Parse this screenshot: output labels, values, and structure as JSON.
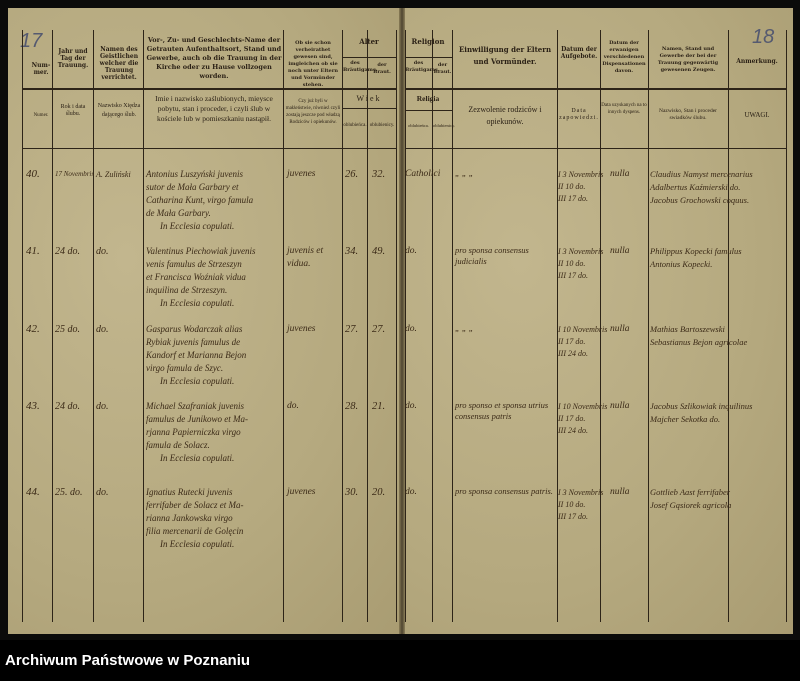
{
  "page_numbers": {
    "left": "17",
    "right": "18"
  },
  "headers_de": {
    "nr": "Num-mer.",
    "jahr": "Jahr und Tag der Trauung.",
    "priest": "Namen des Geistlichen welcher die Trauung verrichtet.",
    "names": "Vor-, Zu- und Geschlechts-Name der Getrauten Aufenthaltsort, Stand und Gewerbe, auch ob die Trauung in der Kirche oder zu Hause vollzogen worden.",
    "guardian": "Ob sie schon verheirathet gewesen sind, imgleichen ob sie noch unter Eltern und Vormünder stehen.",
    "alter": "Alter",
    "alter_groom": "des Bräutigams.",
    "alter_bride": "der Braut.",
    "religion": "Religion",
    "rel_groom": "des Bräutigams.",
    "rel_bride": "der Braut.",
    "consent": "Einwilligung der Eltern und Vormünder.",
    "banns": "Datum der Aufgebote.",
    "dispens": "Datum der erwanigen verschiedenen Dispensationen davon.",
    "witnesses": "Namen, Stand und Gewerbe der bei der Trauung gegenwärtig gewesenen Zeugen.",
    "remarks": "Anmerkung."
  },
  "headers_pl": {
    "nr": "Numer.",
    "rok": "Rok i data ślubu.",
    "priest": "Nazwisko Xiędza dającego ślub.",
    "names": "Imie i nazwisko zaślubionych, mieysce pobytu, stan i proceder, i czyli ślub w kościele lub w pomieszkaniu nastąpił.",
    "guardian": "Czy już byli w małżeństwie, równieź czyli zostają jeszcze pod władzą Rodziców i opiekunów.",
    "wiek": "Wiek",
    "wiek_groom": "oblubieńca.",
    "wiek_bride": "oblubienicy.",
    "religia": "Religia",
    "rel_groom": "oblubieńca.",
    "rel_bride": "oblubienicy.",
    "consent": "Zezwolenie rodziców i opiekunów.",
    "banns": "Data zapowiedzi.",
    "dispens": "Data uzyskanych na to innych dyspens.",
    "witnesses": "Nazwisko, Stan i proceder swiadków ślubu.",
    "remarks": "UWAGI."
  },
  "entries": [
    {
      "nr": "40.",
      "date": "17 Novembris",
      "priest": "A. Zuliński",
      "names": [
        "Antonius Luszyński juvenis",
        "sutor de Mała Garbary et",
        "Catharina Kunt, virgo famula",
        "de Mała Garbary.",
        "In Ecclesia copulati."
      ],
      "status": [
        "juvenes"
      ],
      "age_groom": "26.",
      "age_bride": "32.",
      "religion": "Catholici",
      "consent": "„ „ „",
      "banns": [
        "I 3 Novembris",
        "II 10 do.",
        "III 17 do."
      ],
      "dispens": "nulla",
      "witnesses": [
        "Claudius Namyst mercenarius",
        "Adalbertus Kaźmierski do.",
        "Jacobus Grochowski coquus."
      ]
    },
    {
      "nr": "41.",
      "date": "24 do.",
      "priest": "do.",
      "names": [
        "Valentinus Piechowiak juvenis",
        "venis famulus de Strzeszyn",
        "et Francisca Woźniak vidua",
        "inquilina de Strzeszyn.",
        "In Ecclesia copulati."
      ],
      "status": [
        "juvenis et",
        "vidua."
      ],
      "age_groom": "34.",
      "age_bride": "49.",
      "religion": "do.",
      "consent": "pro sponsa consensus judicialis",
      "banns": [
        "I 3 Novembris",
        "II 10 do.",
        "III 17 do."
      ],
      "dispens": "nulla",
      "witnesses": [
        "Philippus Kopecki famulus",
        "Antonius Kopecki."
      ]
    },
    {
      "nr": "42.",
      "date": "25 do.",
      "priest": "do.",
      "names": [
        "Gasparus Wodarczak alias",
        "Rybiak juvenis famulus de",
        "Kandorf et Marianna Bejon",
        "virgo famula de Szyc.",
        "In Ecclesia copulati."
      ],
      "status": [
        "juvenes"
      ],
      "age_groom": "27.",
      "age_bride": "27.",
      "religion": "do.",
      "consent": "„ „ „",
      "banns": [
        "I 10 Novembris",
        "II 17 do.",
        "III 24 do."
      ],
      "dispens": "nulla",
      "witnesses": [
        "Mathias Bartoszewski",
        "Sebastianus Bejon agricolae"
      ]
    },
    {
      "nr": "43.",
      "date": "24 do.",
      "priest": "do.",
      "names": [
        "Michael Szafraniak juvenis",
        "famulus de Junikowo et Ma-",
        "rjanna Papierniczka virgo",
        "famula de Solacz.",
        "In Ecclesia copulati."
      ],
      "status": [
        "do."
      ],
      "age_groom": "28.",
      "age_bride": "21.",
      "religion": "do.",
      "consent": "pro sponso et sponsa utrius consensus patris",
      "banns": [
        "I 10 Novembris",
        "II 17 do.",
        "III 24 do."
      ],
      "dispens": "nulla",
      "witnesses": [
        "Jacobus Szlikowiak inquilinus",
        "Majcher Sekotka do."
      ]
    },
    {
      "nr": "44.",
      "date": "25. do.",
      "priest": "do.",
      "names": [
        "Ignatius Rutecki juvenis",
        "ferrifaber de Solacz et Ma-",
        "rianna Jankowska virgo",
        "filia mercenarii de Golęcin",
        "In Ecclesia copulati."
      ],
      "status": [
        "juvenes"
      ],
      "age_groom": "30.",
      "age_bride": "20.",
      "religion": "do.",
      "consent": "pro sponsa consensus patris.",
      "banns": [
        "I 3 Novembris",
        "II 10 do.",
        "III 17 do."
      ],
      "dispens": "nulla",
      "witnesses": [
        "Gottlieb Aast ferrifaber",
        "Josef Gąsiorek agricola"
      ]
    }
  ],
  "footer": "Archiwum Państwowe w Poznaniu"
}
